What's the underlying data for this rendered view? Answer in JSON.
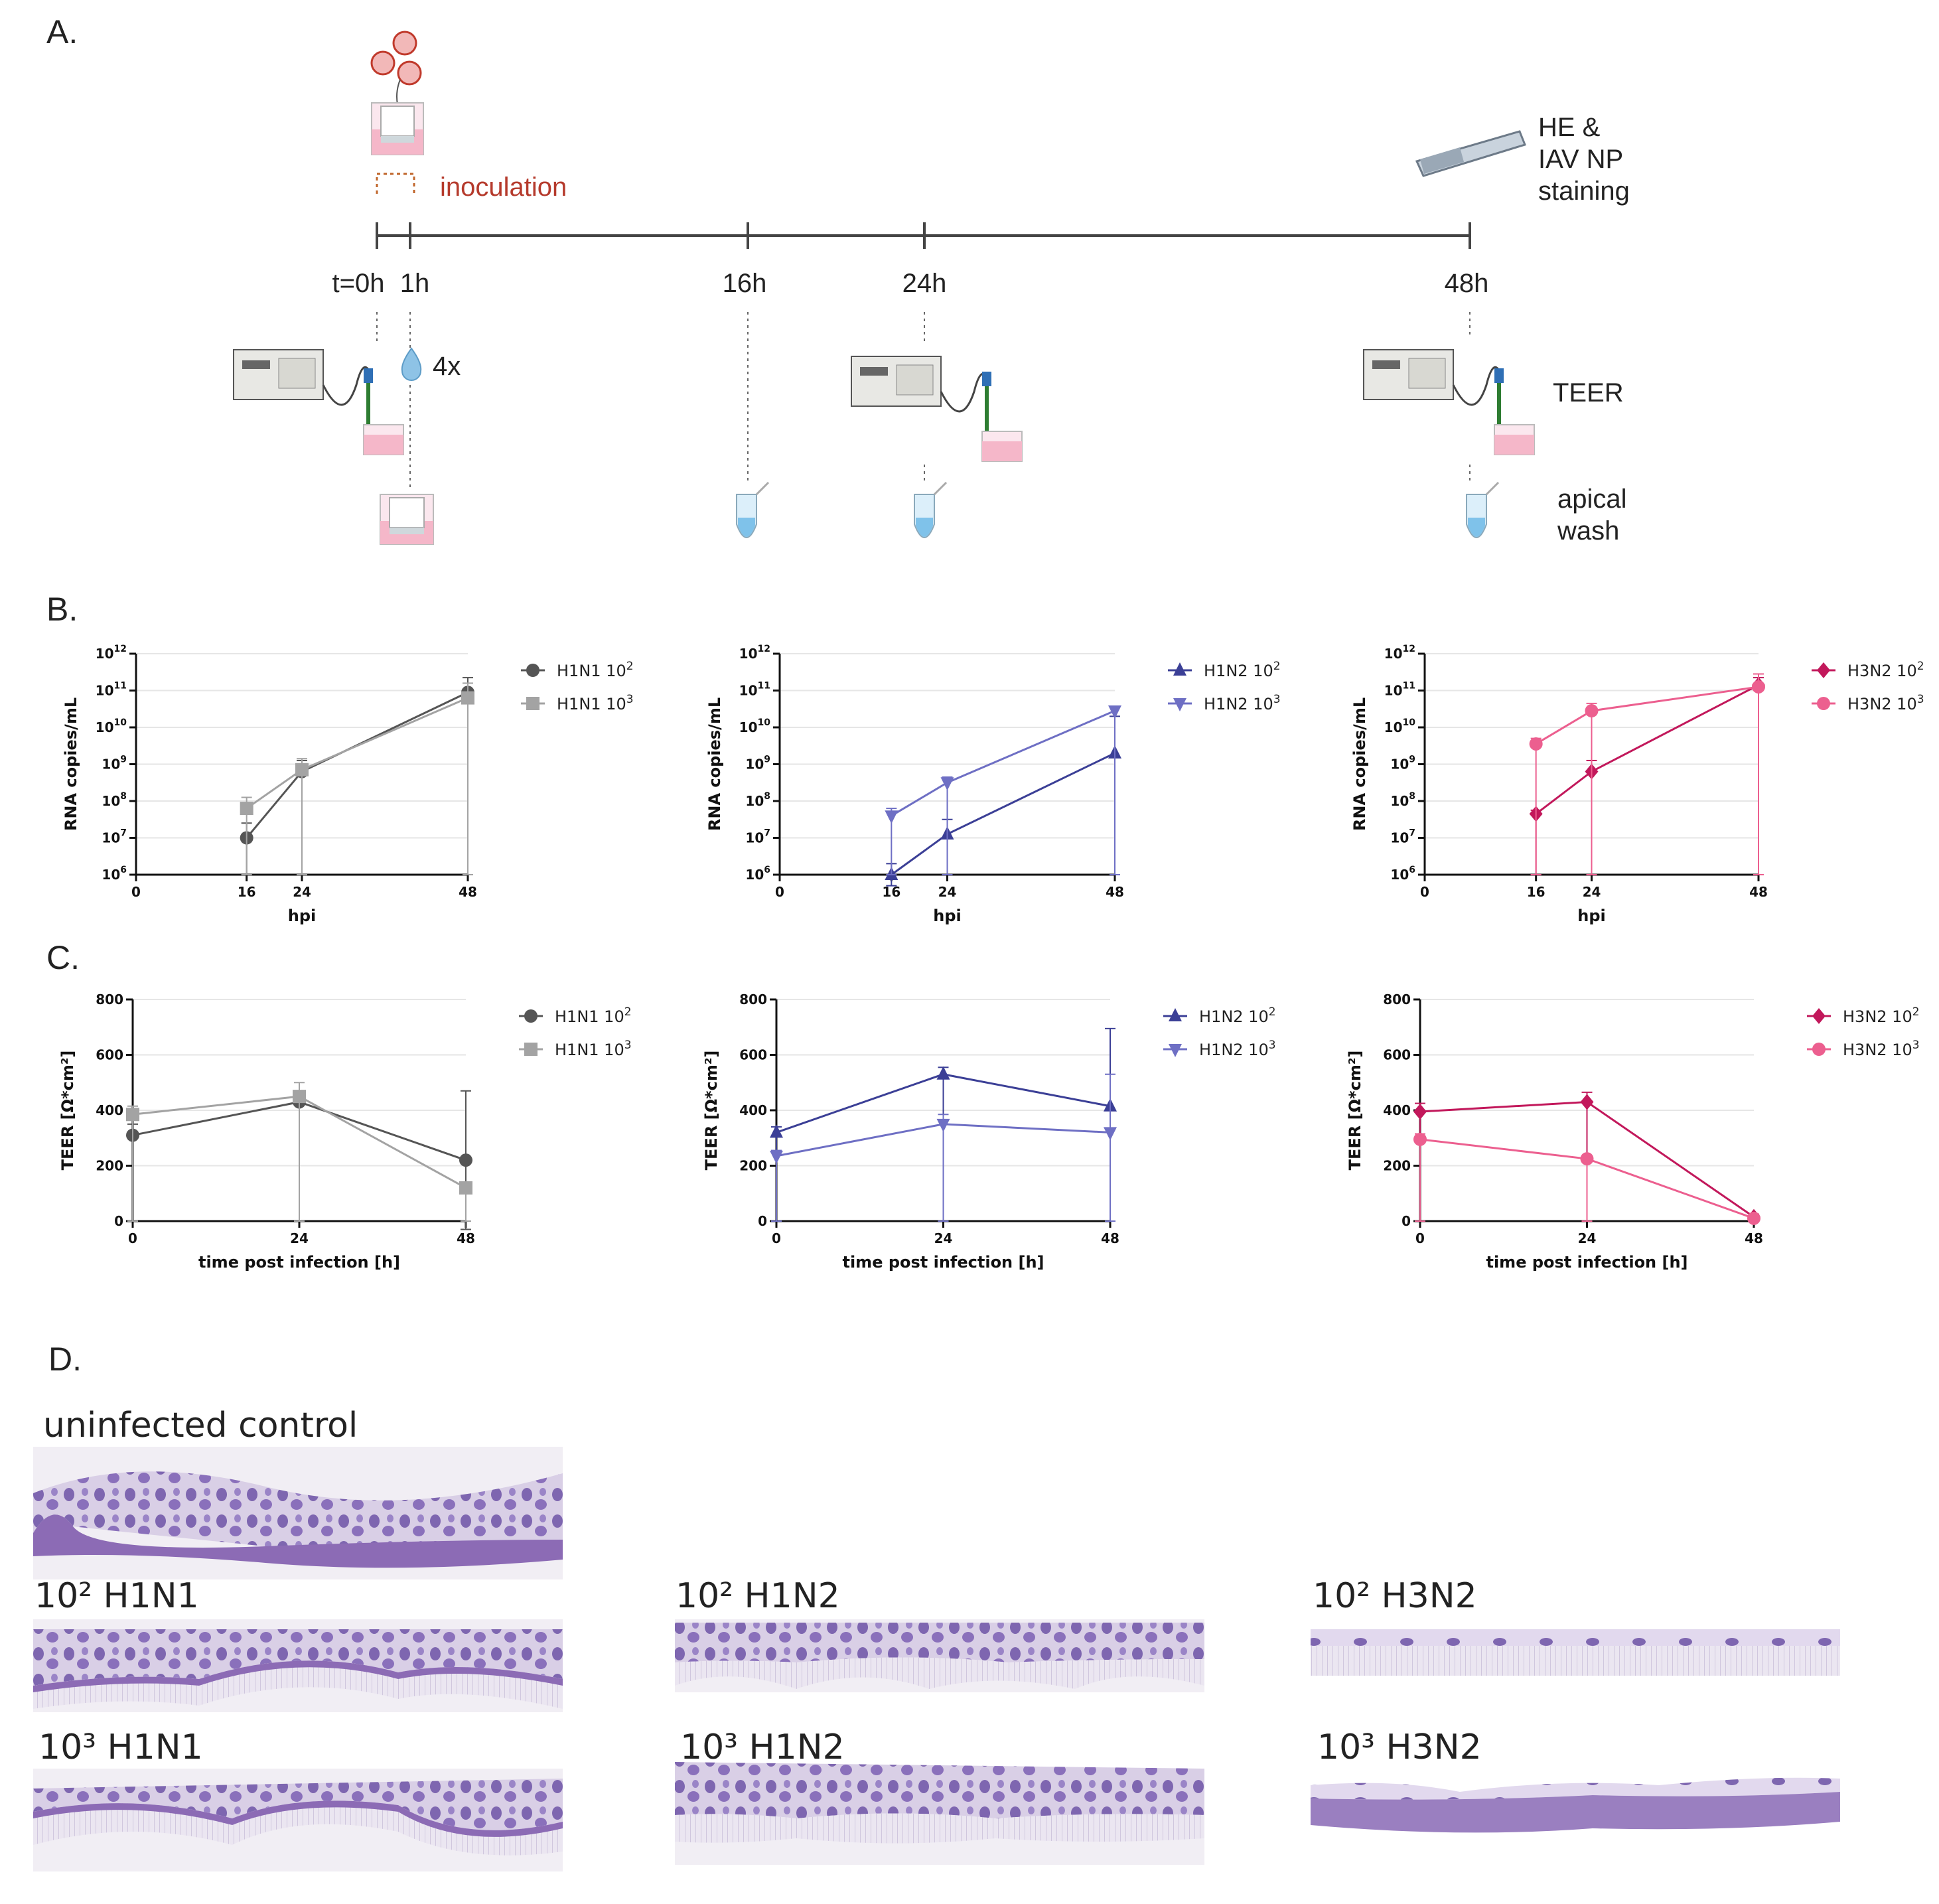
{
  "panels": {
    "A": "A.",
    "B": "B.",
    "C": "C.",
    "D": "D."
  },
  "timeline": {
    "inoculation_label": "inoculation",
    "ticks": [
      "t=0h",
      "1h",
      "16h",
      "24h",
      "48h"
    ],
    "wash_label": "4x",
    "staining_label": [
      "HE &",
      "IAV NP",
      "staining"
    ],
    "teer_label": "TEER",
    "apical_label": [
      "apical",
      "wash"
    ]
  },
  "colors": {
    "h1n1_1e2": "#555555",
    "h1n1_1e3": "#a3a3a3",
    "h1n2_1e2": "#3b3f96",
    "h1n2_1e3": "#6e6fc4",
    "h3n2_1e2": "#c2185b",
    "h3n2_1e3": "#ec5f8f",
    "inoculation": "#b53a2c"
  },
  "chart_data": [
    {
      "type": "line",
      "panel": "B",
      "xlabel": "hpi",
      "ylabel": "RNA copies/mL",
      "y_scale": "log10",
      "ylim_log10": [
        6,
        12
      ],
      "x_ticks": [
        0,
        16,
        24,
        48
      ],
      "x_range": [
        0,
        48
      ],
      "y_tick_labels": [
        "10^6",
        "10^7",
        "10^8",
        "10^9",
        "10^10",
        "10^11",
        "10^12"
      ],
      "legend_position": "right",
      "series": [
        {
          "name": "H1N1 10^2",
          "marker": "circle",
          "color": "#555555",
          "x": [
            16,
            24,
            48
          ],
          "log10_y": [
            7.0,
            8.8,
            10.95
          ],
          "log10_err": [
            0.4,
            0.3,
            0.4
          ]
        },
        {
          "name": "H1N1 10^3",
          "marker": "square",
          "color": "#a3a3a3",
          "x": [
            16,
            24,
            48
          ],
          "log10_y": [
            7.8,
            8.85,
            10.8
          ],
          "log10_err": [
            0.3,
            0.3,
            0.4
          ]
        }
      ]
    },
    {
      "type": "line",
      "panel": "B",
      "xlabel": "hpi",
      "ylabel": "RNA copies/mL",
      "y_scale": "log10",
      "ylim_log10": [
        6,
        12
      ],
      "x_ticks": [
        0,
        16,
        24,
        48
      ],
      "x_range": [
        0,
        48
      ],
      "y_tick_labels": [
        "10^6",
        "10^7",
        "10^8",
        "10^9",
        "10^10",
        "10^11",
        "10^12"
      ],
      "legend_position": "right",
      "series": [
        {
          "name": "H1N2 10^2",
          "marker": "triangle-up",
          "color": "#3b3f96",
          "x": [
            16,
            24,
            48
          ],
          "log10_y": [
            6.0,
            7.1,
            9.3
          ],
          "log10_err": [
            0.3,
            0.4,
            1.0
          ]
        },
        {
          "name": "H1N2 10^3",
          "marker": "triangle-down",
          "color": "#6e6fc4",
          "x": [
            16,
            24,
            48
          ],
          "log10_y": [
            7.6,
            8.5,
            10.45
          ],
          "log10_err": [
            0.2,
            0.15,
            0.1
          ]
        }
      ]
    },
    {
      "type": "line",
      "panel": "B",
      "xlabel": "hpi",
      "ylabel": "RNA copies/mL",
      "y_scale": "log10",
      "ylim_log10": [
        6,
        12
      ],
      "x_ticks": [
        0,
        16,
        24,
        48
      ],
      "x_range": [
        0,
        48
      ],
      "y_tick_labels": [
        "10^6",
        "10^7",
        "10^8",
        "10^9",
        "10^10",
        "10^11",
        "10^12"
      ],
      "legend_position": "right",
      "series": [
        {
          "name": "H3N2 10^2",
          "marker": "diamond",
          "color": "#c2185b",
          "x": [
            16,
            24,
            48
          ],
          "log10_y": [
            7.65,
            8.8,
            11.15
          ],
          "log10_err": [
            0.1,
            0.3,
            0.2
          ]
        },
        {
          "name": "H3N2 10^3",
          "marker": "circle",
          "color": "#ec5f8f",
          "x": [
            16,
            24,
            48
          ],
          "log10_y": [
            9.55,
            10.45,
            11.1
          ],
          "log10_err": [
            0.15,
            0.2,
            0.35
          ]
        }
      ]
    },
    {
      "type": "line",
      "panel": "C",
      "xlabel": "time post infection [h]",
      "ylabel": "TEER [Ω*cm²]",
      "ylim": [
        0,
        800
      ],
      "x_ticks": [
        0,
        24,
        48
      ],
      "x_range": [
        0,
        48
      ],
      "y_ticks": [
        0,
        200,
        400,
        600,
        800
      ],
      "legend_position": "right",
      "series": [
        {
          "name": "H1N1 10^2",
          "marker": "circle",
          "color": "#555555",
          "x": [
            0,
            24,
            48
          ],
          "y": [
            310,
            430,
            220
          ],
          "err": [
            40,
            30,
            250
          ]
        },
        {
          "name": "H1N1 10^3",
          "marker": "square",
          "color": "#a3a3a3",
          "x": [
            0,
            24,
            48
          ],
          "y": [
            385,
            450,
            120
          ],
          "err": [
            30,
            50,
            20
          ]
        }
      ]
    },
    {
      "type": "line",
      "panel": "C",
      "xlabel": "time post infection [h]",
      "ylabel": "TEER [Ω*cm²]",
      "ylim": [
        0,
        800
      ],
      "x_ticks": [
        0,
        24,
        48
      ],
      "x_range": [
        0,
        48
      ],
      "y_ticks": [
        0,
        200,
        400,
        600,
        800
      ],
      "legend_position": "right",
      "series": [
        {
          "name": "H1N2 10^2",
          "marker": "triangle-up",
          "color": "#3b3f96",
          "x": [
            0,
            24,
            48
          ],
          "y": [
            320,
            530,
            415
          ],
          "err": [
            20,
            25,
            280
          ]
        },
        {
          "name": "H1N2 10^3",
          "marker": "triangle-down",
          "color": "#6e6fc4",
          "x": [
            0,
            24,
            48
          ],
          "y": [
            235,
            350,
            320
          ],
          "err": [
            20,
            35,
            210
          ]
        }
      ]
    },
    {
      "type": "line",
      "panel": "C",
      "xlabel": "time post infection [h]",
      "ylabel": "TEER [Ω*cm²]",
      "ylim": [
        0,
        800
      ],
      "x_ticks": [
        0,
        24,
        48
      ],
      "x_range": [
        0,
        48
      ],
      "y_ticks": [
        0,
        200,
        400,
        600,
        800
      ],
      "legend_position": "right",
      "series": [
        {
          "name": "H3N2 10^2",
          "marker": "diamond",
          "color": "#c2185b",
          "x": [
            0,
            24,
            48
          ],
          "y": [
            395,
            430,
            15
          ],
          "err": [
            30,
            35,
            10
          ]
        },
        {
          "name": "H3N2 10^3",
          "marker": "circle",
          "color": "#ec5f8f",
          "x": [
            0,
            24,
            48
          ],
          "y": [
            295,
            225,
            10
          ],
          "err": [
            20,
            10,
            8
          ]
        }
      ]
    }
  ],
  "histology": {
    "uninfected": "uninfected control",
    "h1n1_1e2": "10² H1N1",
    "h1n1_1e3": "10³ H1N1",
    "h1n2_1e2": "10² H1N2",
    "h1n2_1e3": "10³ H1N2",
    "h3n2_1e2": "10² H3N2",
    "h3n2_1e3": "10³ H3N2"
  }
}
